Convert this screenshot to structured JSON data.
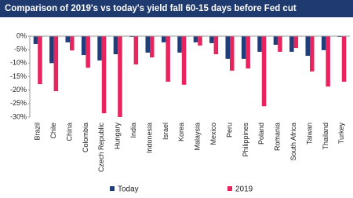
{
  "chart_data": {
    "type": "bar",
    "title": "Comparison of 2019's vs today's yield fall 60-15 days before Fed cut",
    "categories": [
      "Brazil",
      "Chile",
      "China",
      "Colombia",
      "Czech Republic",
      "Hungary",
      "India",
      "Indonesia",
      "Israel",
      "Korea",
      "Malaysia",
      "Mexico",
      "Peru",
      "Philippines",
      "Poland",
      "Romania",
      "South Africa",
      "Taiwan",
      "Thailand",
      "Turkey"
    ],
    "series": [
      {
        "name": "Today",
        "color": "#1f3e7a",
        "values": [
          -2.9,
          -10,
          -2.3,
          -7,
          -9,
          -6.7,
          -0.3,
          -6.1,
          -2.3,
          -6.1,
          -2.3,
          -2.6,
          -8.4,
          -8.4,
          -5.8,
          -3.2,
          -5.8,
          -7.3,
          -5.2,
          -0.3
        ]
      },
      {
        "name": "2019",
        "color": "#e8245e",
        "values": [
          -17.8,
          -20.4,
          -5.3,
          -11.7,
          -28.6,
          -30,
          -10.5,
          -7.9,
          -16.9,
          -18,
          -3.5,
          -6.7,
          -12.8,
          -12,
          -26,
          -5.8,
          -4.4,
          -13.1,
          -18.7,
          -16.9
        ]
      }
    ],
    "ylim": [
      -30,
      0
    ],
    "yticks": [
      {
        "value": 0,
        "label": "0%"
      },
      {
        "value": -5,
        "label": "-5%"
      },
      {
        "value": -10,
        "label": "-10%"
      },
      {
        "value": -15,
        "label": "-15%"
      },
      {
        "value": -20,
        "label": "-20%"
      },
      {
        "value": -25,
        "label": "-25%"
      },
      {
        "value": -30,
        "label": "-30%"
      }
    ],
    "grid": false,
    "legend": "bottom"
  }
}
